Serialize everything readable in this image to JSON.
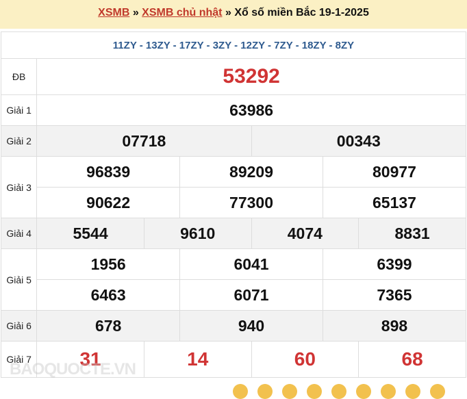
{
  "header": {
    "crumb1": "XSMB",
    "sep1": " » ",
    "crumb2": "XSMB chủ nhật",
    "sep2": " » ",
    "title": "Xổ số miền Bắc 19-1-2025"
  },
  "codes": "11ZY - 13ZY - 17ZY - 3ZY - 12ZY - 7ZY - 18ZY - 8ZY",
  "prizes": {
    "db": {
      "label": "ĐB",
      "values": [
        "53292"
      ]
    },
    "g1": {
      "label": "Giải 1",
      "values": [
        "63986"
      ]
    },
    "g2": {
      "label": "Giải 2",
      "values": [
        "07718",
        "00343"
      ]
    },
    "g3": {
      "label": "Giải 3",
      "values": [
        "96839",
        "89209",
        "80977",
        "90622",
        "77300",
        "65137"
      ]
    },
    "g4": {
      "label": "Giải 4",
      "values": [
        "5544",
        "9610",
        "4074",
        "8831"
      ]
    },
    "g5": {
      "label": "Giải 5",
      "values": [
        "1956",
        "6041",
        "6399",
        "6463",
        "6071",
        "7365"
      ]
    },
    "g6": {
      "label": "Giải 6",
      "values": [
        "678",
        "940",
        "898"
      ]
    },
    "g7": {
      "label": "Giải 7",
      "values": [
        "31",
        "14",
        "60",
        "68"
      ]
    }
  },
  "watermark": "BAOQUOCTE.VN",
  "colors": {
    "header_bg": "#fbf0c4",
    "link": "#c0392b",
    "codes": "#2f5b8f",
    "special": "#d03434"
  }
}
